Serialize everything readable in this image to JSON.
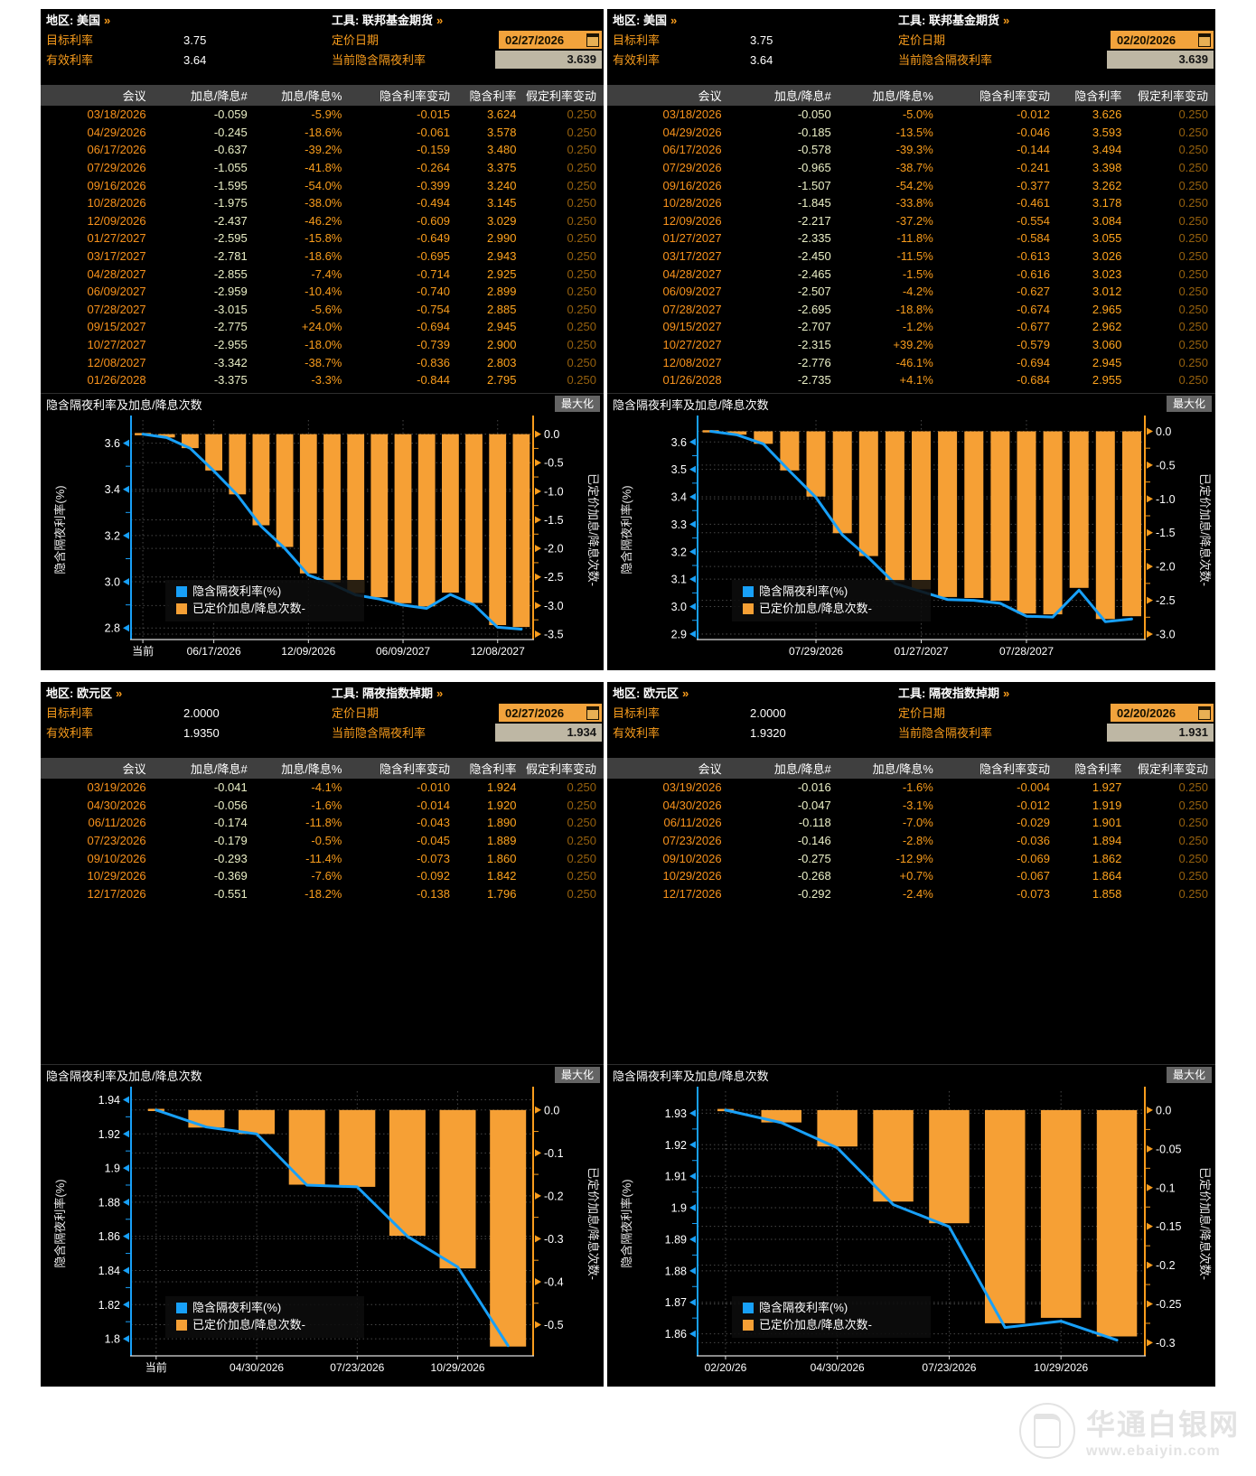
{
  "labels": {
    "region_prefix": "地区:",
    "tool_prefix": "工具:",
    "chevron": "»",
    "target_rate_label": "目标利率",
    "effective_rate_label": "有效利率",
    "pricing_date_label": "定价日期",
    "current_implied_label": "当前隐含隔夜利率",
    "maximize_label": "最大化",
    "chart_title": "隐含隔夜利率及加息/降息次数",
    "left_axis_label": "隐含隔夜利率(%)",
    "right_axis_label": "已定价加息/降息次数-",
    "legend_line": "隐含隔夜利率(%)",
    "legend_bar": "已定价加息/降息次数-"
  },
  "colors": {
    "bar_orange": "#F6A035",
    "line_blue": "#18A0F8",
    "axis_orange": "#F89C1C",
    "amber_label": "#F89C1C",
    "date_box_bg": "#F2A33C",
    "value_box_bg": "#BEB7A4",
    "table_header_bg": "#3F3F3F",
    "grid_gray": "#474747"
  },
  "table_headers": [
    "会议",
    "加息/降息#",
    "加息/降息%",
    "隐含利率变动",
    "隐含利率",
    "假定利率变动"
  ],
  "panels": [
    {
      "region": "美国",
      "tool": "联邦基金期货",
      "target_rate": "3.75",
      "effective_rate": "3.64",
      "pricing_date": "02/27/2026",
      "current_implied": "3.639",
      "rows": [
        [
          "03/18/2026",
          "-0.059",
          "-5.9%",
          "-0.015",
          "3.624",
          "0.250"
        ],
        [
          "04/29/2026",
          "-0.245",
          "-18.6%",
          "-0.061",
          "3.578",
          "0.250"
        ],
        [
          "06/17/2026",
          "-0.637",
          "-39.2%",
          "-0.159",
          "3.480",
          "0.250"
        ],
        [
          "07/29/2026",
          "-1.055",
          "-41.8%",
          "-0.264",
          "3.375",
          "0.250"
        ],
        [
          "09/16/2026",
          "-1.595",
          "-54.0%",
          "-0.399",
          "3.240",
          "0.250"
        ],
        [
          "10/28/2026",
          "-1.975",
          "-38.0%",
          "-0.494",
          "3.145",
          "0.250"
        ],
        [
          "12/09/2026",
          "-2.437",
          "-46.2%",
          "-0.609",
          "3.029",
          "0.250"
        ],
        [
          "01/27/2027",
          "-2.595",
          "-15.8%",
          "-0.649",
          "2.990",
          "0.250"
        ],
        [
          "03/17/2027",
          "-2.781",
          "-18.6%",
          "-0.695",
          "2.943",
          "0.250"
        ],
        [
          "04/28/2027",
          "-2.855",
          "-7.4%",
          "-0.714",
          "2.925",
          "0.250"
        ],
        [
          "06/09/2027",
          "-2.959",
          "-10.4%",
          "-0.740",
          "2.899",
          "0.250"
        ],
        [
          "07/28/2027",
          "-3.015",
          "-5.6%",
          "-0.754",
          "2.885",
          "0.250"
        ],
        [
          "09/15/2027",
          "-2.775",
          "+24.0%",
          "-0.694",
          "2.945",
          "0.250"
        ],
        [
          "10/27/2027",
          "-2.955",
          "-18.0%",
          "-0.739",
          "2.900",
          "0.250"
        ],
        [
          "12/08/2027",
          "-3.342",
          "-38.7%",
          "-0.836",
          "2.803",
          "0.250"
        ],
        [
          "01/26/2028",
          "-3.375",
          "-3.3%",
          "-0.844",
          "2.795",
          "0.250"
        ]
      ],
      "chart": {
        "type": "bar+line",
        "current": 3.639,
        "categories": [
          "当前",
          "03/18/2026",
          "04/29/2026",
          "06/17/2026",
          "07/29/2026",
          "09/16/2026",
          "10/28/2026",
          "12/09/2026",
          "01/27/2027",
          "03/17/2027",
          "04/28/2027",
          "06/09/2027",
          "07/28/2027",
          "09/15/2027",
          "10/27/2027",
          "12/08/2027",
          "01/26/2028"
        ],
        "line": [
          3.639,
          3.624,
          3.578,
          3.48,
          3.375,
          3.24,
          3.145,
          3.029,
          2.99,
          2.943,
          2.925,
          2.899,
          2.885,
          2.945,
          2.9,
          2.803,
          2.795
        ],
        "bars": [
          -0.059,
          -0.245,
          -0.637,
          -1.055,
          -1.595,
          -1.975,
          -2.437,
          -2.595,
          -2.781,
          -2.855,
          -2.959,
          -3.015,
          -2.775,
          -2.955,
          -3.342,
          -3.375
        ],
        "left_ticks": [
          "3.6",
          "3.4",
          "3.2",
          "3.0",
          "2.8"
        ],
        "left_min": 2.75,
        "left_max": 3.7,
        "right_ticks": [
          "0.0",
          "-0.5",
          "-1.0",
          "-1.5",
          "-2.0",
          "-2.5",
          "-3.0",
          "-3.5"
        ],
        "right_extent": 3.5,
        "x_labels": [
          {
            "i": 0,
            "label": "当前"
          },
          {
            "i": 3,
            "label": "06/17/2026"
          },
          {
            "i": 7,
            "label": "12/09/2026"
          },
          {
            "i": 11,
            "label": "06/09/2027"
          },
          {
            "i": 15,
            "label": "12/08/2027"
          }
        ]
      }
    },
    {
      "region": "美国",
      "tool": "联邦基金期货",
      "target_rate": "3.75",
      "effective_rate": "3.64",
      "pricing_date": "02/20/2026",
      "current_implied": "3.639",
      "rows": [
        [
          "03/18/2026",
          "-0.050",
          "-5.0%",
          "-0.012",
          "3.626",
          "0.250"
        ],
        [
          "04/29/2026",
          "-0.185",
          "-13.5%",
          "-0.046",
          "3.593",
          "0.250"
        ],
        [
          "06/17/2026",
          "-0.578",
          "-39.3%",
          "-0.144",
          "3.494",
          "0.250"
        ],
        [
          "07/29/2026",
          "-0.965",
          "-38.7%",
          "-0.241",
          "3.398",
          "0.250"
        ],
        [
          "09/16/2026",
          "-1.507",
          "-54.2%",
          "-0.377",
          "3.262",
          "0.250"
        ],
        [
          "10/28/2026",
          "-1.845",
          "-33.8%",
          "-0.461",
          "3.178",
          "0.250"
        ],
        [
          "12/09/2026",
          "-2.217",
          "-37.2%",
          "-0.554",
          "3.084",
          "0.250"
        ],
        [
          "01/27/2027",
          "-2.335",
          "-11.8%",
          "-0.584",
          "3.055",
          "0.250"
        ],
        [
          "03/17/2027",
          "-2.450",
          "-11.5%",
          "-0.613",
          "3.026",
          "0.250"
        ],
        [
          "04/28/2027",
          "-2.465",
          "-1.5%",
          "-0.616",
          "3.023",
          "0.250"
        ],
        [
          "06/09/2027",
          "-2.507",
          "-4.2%",
          "-0.627",
          "3.012",
          "0.250"
        ],
        [
          "07/28/2027",
          "-2.695",
          "-18.8%",
          "-0.674",
          "2.965",
          "0.250"
        ],
        [
          "09/15/2027",
          "-2.707",
          "-1.2%",
          "-0.677",
          "2.962",
          "0.250"
        ],
        [
          "10/27/2027",
          "-2.315",
          "+39.2%",
          "-0.579",
          "3.060",
          "0.250"
        ],
        [
          "12/08/2027",
          "-2.776",
          "-46.1%",
          "-0.694",
          "2.945",
          "0.250"
        ],
        [
          "01/26/2028",
          "-2.735",
          "+4.1%",
          "-0.684",
          "2.955",
          "0.250"
        ]
      ],
      "chart": {
        "type": "bar+line",
        "current": 3.639,
        "categories": [
          "当前",
          "03/18/2026",
          "04/29/2026",
          "06/17/2026",
          "07/29/2026",
          "09/16/2026",
          "10/28/2026",
          "12/09/2026",
          "01/27/2027",
          "03/17/2027",
          "04/28/2027",
          "06/09/2027",
          "07/28/2027",
          "09/15/2027",
          "10/27/2027",
          "12/08/2027",
          "01/26/2028"
        ],
        "line": [
          3.639,
          3.626,
          3.593,
          3.494,
          3.398,
          3.262,
          3.178,
          3.084,
          3.055,
          3.026,
          3.023,
          3.012,
          2.965,
          2.962,
          3.06,
          2.945,
          2.955
        ],
        "bars": [
          -0.05,
          -0.185,
          -0.578,
          -0.965,
          -1.507,
          -1.845,
          -2.217,
          -2.335,
          -2.45,
          -2.465,
          -2.507,
          -2.695,
          -2.707,
          -2.315,
          -2.776,
          -2.735
        ],
        "left_ticks": [
          "3.6",
          "3.5",
          "3.4",
          "3.3",
          "3.2",
          "3.1",
          "3.0",
          "2.9"
        ],
        "left_min": 2.88,
        "left_max": 3.68,
        "right_ticks": [
          "0.0",
          "-0.5",
          "-1.0",
          "-1.5",
          "-2.0",
          "-2.5",
          "-3.0"
        ],
        "right_extent": 3.0,
        "x_labels": [
          {
            "i": 4,
            "label": "07/29/2026"
          },
          {
            "i": 8,
            "label": "01/27/2027"
          },
          {
            "i": 12,
            "label": "07/28/2027"
          }
        ]
      }
    },
    {
      "region": "欧元区",
      "tool": "隔夜指数掉期",
      "target_rate": "2.0000",
      "effective_rate": "1.9350",
      "pricing_date": "02/27/2026",
      "current_implied": "1.934",
      "rows": [
        [
          "03/19/2026",
          "-0.041",
          "-4.1%",
          "-0.010",
          "1.924",
          "0.250"
        ],
        [
          "04/30/2026",
          "-0.056",
          "-1.6%",
          "-0.014",
          "1.920",
          "0.250"
        ],
        [
          "06/11/2026",
          "-0.174",
          "-11.8%",
          "-0.043",
          "1.890",
          "0.250"
        ],
        [
          "07/23/2026",
          "-0.179",
          "-0.5%",
          "-0.045",
          "1.889",
          "0.250"
        ],
        [
          "09/10/2026",
          "-0.293",
          "-11.4%",
          "-0.073",
          "1.860",
          "0.250"
        ],
        [
          "10/29/2026",
          "-0.369",
          "-7.6%",
          "-0.092",
          "1.842",
          "0.250"
        ],
        [
          "12/17/2026",
          "-0.551",
          "-18.2%",
          "-0.138",
          "1.796",
          "0.250"
        ]
      ],
      "chart": {
        "type": "bar+line",
        "current": 1.934,
        "categories": [
          "当前",
          "03/19/2026",
          "04/30/2026",
          "06/11/2026",
          "07/23/2026",
          "09/10/2026",
          "10/29/2026",
          "12/17/2026"
        ],
        "line": [
          1.934,
          1.924,
          1.92,
          1.89,
          1.889,
          1.86,
          1.842,
          1.796
        ],
        "bars": [
          -0.041,
          -0.056,
          -0.174,
          -0.179,
          -0.293,
          -0.369,
          -0.551
        ],
        "left_ticks": [
          "1.94",
          "1.92",
          "1.9",
          "1.88",
          "1.86",
          "1.84",
          "1.82",
          "1.8"
        ],
        "left_min": 1.79,
        "left_max": 1.945,
        "right_ticks": [
          "0.0",
          "-0.1",
          "-0.2",
          "-0.3",
          "-0.4",
          "-0.5"
        ],
        "right_extent": 0.56,
        "x_labels": [
          {
            "i": 0,
            "label": "当前"
          },
          {
            "i": 2,
            "label": "04/30/2026"
          },
          {
            "i": 4,
            "label": "07/23/2026"
          },
          {
            "i": 6,
            "label": "10/29/2026"
          }
        ]
      }
    },
    {
      "region": "欧元区",
      "tool": "隔夜指数掉期",
      "target_rate": "2.0000",
      "effective_rate": "1.9320",
      "pricing_date": "02/20/2026",
      "current_implied": "1.931",
      "rows": [
        [
          "03/19/2026",
          "-0.016",
          "-1.6%",
          "-0.004",
          "1.927",
          "0.250"
        ],
        [
          "04/30/2026",
          "-0.047",
          "-3.1%",
          "-0.012",
          "1.919",
          "0.250"
        ],
        [
          "06/11/2026",
          "-0.118",
          "-7.0%",
          "-0.029",
          "1.901",
          "0.250"
        ],
        [
          "07/23/2026",
          "-0.146",
          "-2.8%",
          "-0.036",
          "1.894",
          "0.250"
        ],
        [
          "09/10/2026",
          "-0.275",
          "-12.9%",
          "-0.069",
          "1.862",
          "0.250"
        ],
        [
          "10/29/2026",
          "-0.268",
          "+0.7%",
          "-0.067",
          "1.864",
          "0.250"
        ],
        [
          "12/17/2026",
          "-0.292",
          "-2.4%",
          "-0.073",
          "1.858",
          "0.250"
        ]
      ],
      "chart": {
        "type": "bar+line",
        "current": 1.931,
        "categories": [
          "02/20/26",
          "03/19/2026",
          "04/30/2026",
          "06/11/2026",
          "07/23/2026",
          "09/10/2026",
          "10/29/2026",
          "12/17/2026"
        ],
        "line": [
          1.931,
          1.927,
          1.919,
          1.901,
          1.894,
          1.862,
          1.864,
          1.858
        ],
        "bars": [
          -0.016,
          -0.047,
          -0.118,
          -0.146,
          -0.275,
          -0.268,
          -0.292
        ],
        "left_ticks": [
          "1.93",
          "1.92",
          "1.91",
          "1.9",
          "1.89",
          "1.88",
          "1.87",
          "1.86"
        ],
        "left_min": 1.853,
        "left_max": 1.937,
        "right_ticks": [
          "0.0",
          "-0.05",
          "-0.1",
          "-0.15",
          "-0.2",
          "-0.25",
          "-0.3"
        ],
        "right_extent": 0.31,
        "x_labels": [
          {
            "i": 0,
            "label": "02/20/26"
          },
          {
            "i": 2,
            "label": "04/30/2026"
          },
          {
            "i": 4,
            "label": "07/23/2026"
          },
          {
            "i": 6,
            "label": "10/29/2026"
          }
        ]
      }
    }
  ],
  "watermark": {
    "title": "华通白银网",
    "url": "www.ebaiyin.com"
  }
}
